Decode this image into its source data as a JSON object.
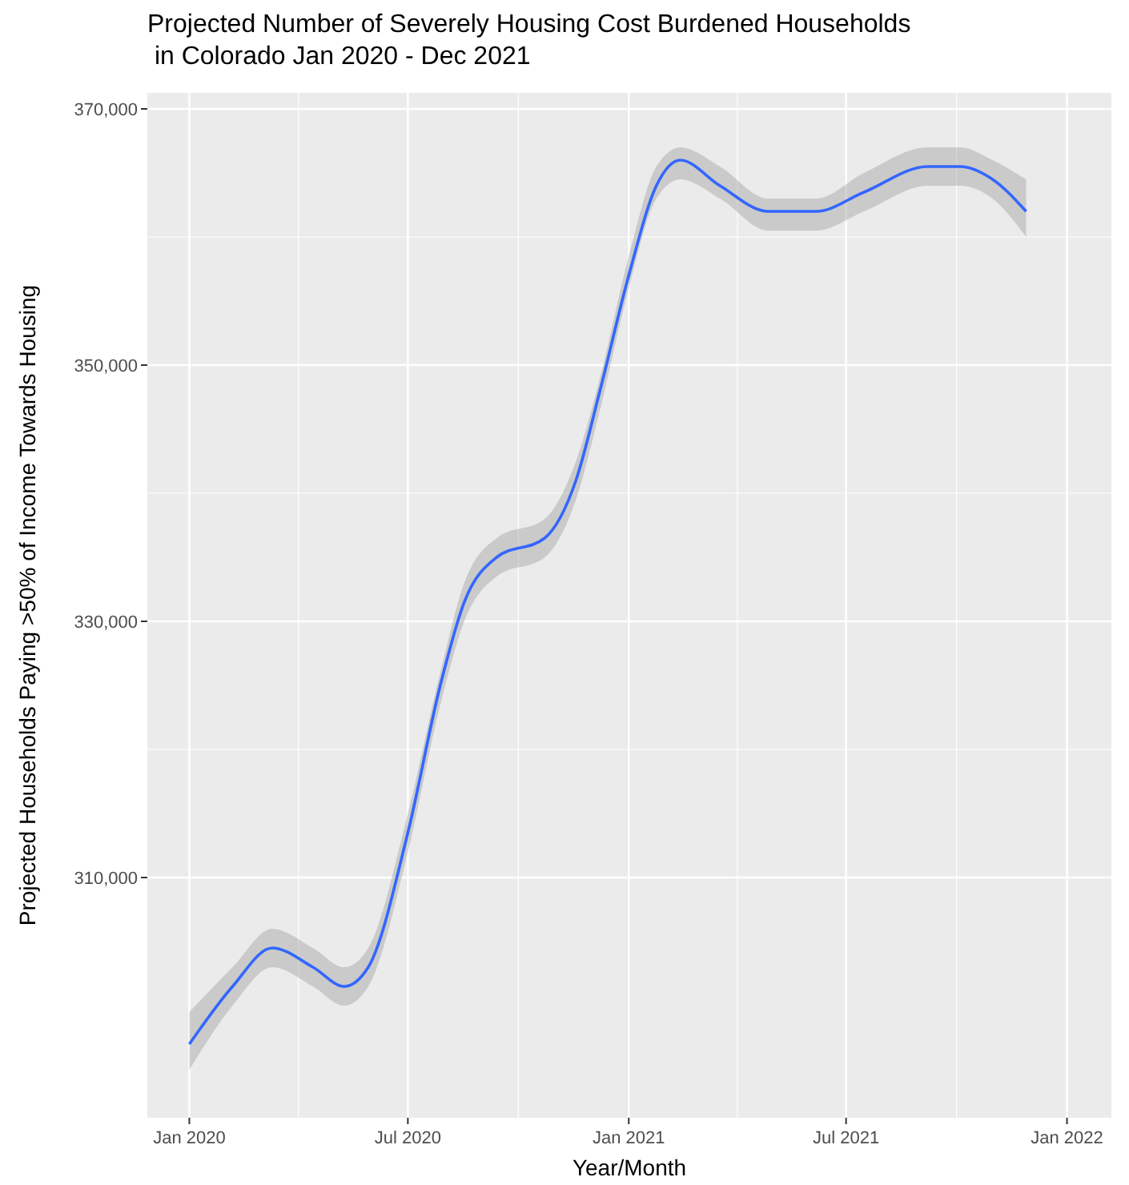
{
  "chart_data": {
    "type": "line",
    "title": "Projected Number of Severely Housing Cost Burdened Households\n in Colorado Jan 2020 - Dec 2021",
    "xlabel": "Year/Month",
    "ylabel": "Projected Households Paying >50% of Income Towards Housing",
    "x": [
      "2020-01-01",
      "2020-02-06",
      "2020-03-10",
      "2020-04-13",
      "2020-05-09",
      "2020-05-29",
      "2020-07-01",
      "2020-07-28",
      "2020-08-17",
      "2020-09-13",
      "2020-10-23",
      "2020-11-18",
      "2020-12-08",
      "2021-01-01",
      "2021-01-24",
      "2021-02-13",
      "2021-03-18",
      "2021-04-27",
      "2021-06-06",
      "2021-07-16",
      "2021-09-07",
      "2021-10-04",
      "2021-10-31",
      "2021-11-28"
    ],
    "series": [
      {
        "color": "#3366ff",
        "values": [
          297000,
          301500,
          304500,
          303000,
          301500,
          303000,
          313500,
          325000,
          331500,
          335000,
          336500,
          341000,
          348000,
          357000,
          364000,
          366000,
          364000,
          362000,
          362000,
          363500,
          365500,
          365500,
          364500,
          362000
        ],
        "lower": [
          295000,
          300000,
          303000,
          301500,
          300000,
          301500,
          312000,
          323500,
          330000,
          333500,
          335000,
          339500,
          346500,
          356000,
          363000,
          364500,
          363000,
          360500,
          360500,
          362000,
          364000,
          364000,
          363000,
          360000
        ],
        "upper": [
          299500,
          303000,
          306000,
          304500,
          303000,
          304500,
          315000,
          326000,
          333000,
          336500,
          338000,
          342500,
          349000,
          358500,
          365500,
          367000,
          365500,
          363000,
          363000,
          365000,
          367000,
          367000,
          366000,
          364500
        ]
      }
    ],
    "xlim": [
      "2019-11-27",
      "2022-02-07"
    ],
    "xticks": [
      {
        "value": "2020-01-01",
        "label": "Jan 2020"
      },
      {
        "value": "2020-07-01",
        "label": "Jul 2020"
      },
      {
        "value": "2021-01-01",
        "label": "Jan 2021"
      },
      {
        "value": "2021-07-01",
        "label": "Jul 2021"
      },
      {
        "value": "2022-01-01",
        "label": "Jan 2022"
      }
    ],
    "ylim": [
      291250,
      371250
    ],
    "yticks": [
      {
        "value": 310000,
        "label": "310,000"
      },
      {
        "value": 330000,
        "label": "330,000"
      },
      {
        "value": 350000,
        "label": "350,000"
      },
      {
        "value": 370000,
        "label": "370,000"
      }
    ],
    "grid": true,
    "marker": "none",
    "line_style": "solid"
  }
}
